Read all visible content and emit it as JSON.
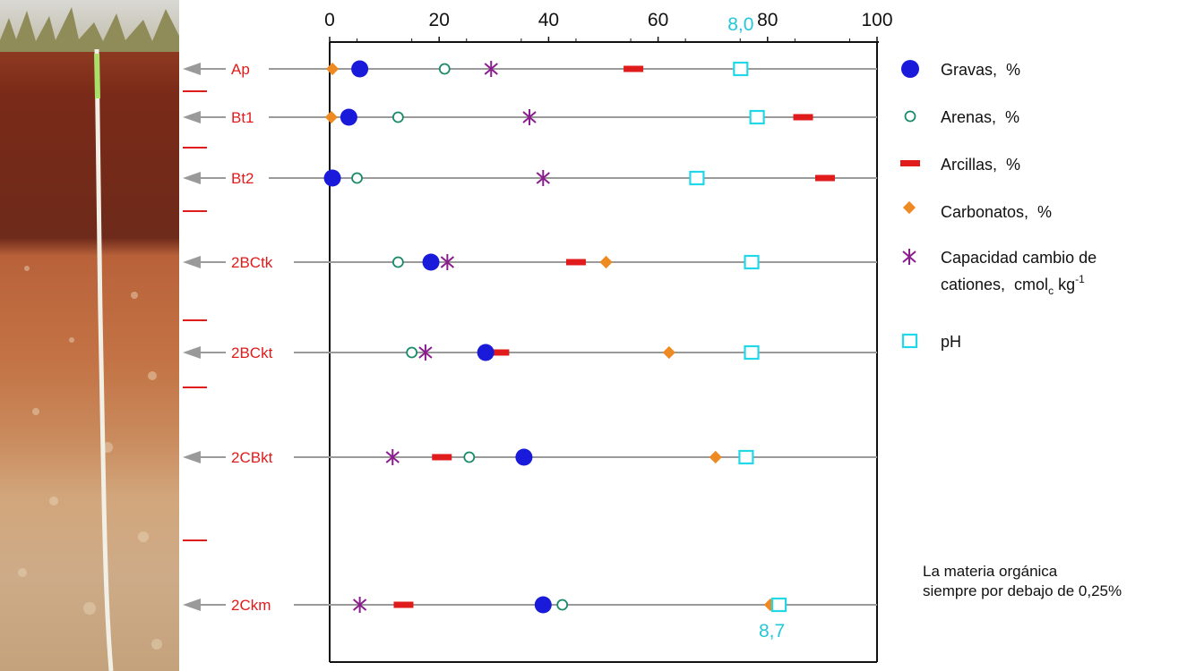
{
  "chart_data": {
    "type": "scatter",
    "x_ticks": [
      "0",
      "20",
      "40",
      "60",
      "80",
      "100"
    ],
    "xlim": [
      0,
      100
    ],
    "horizons": [
      "Ap",
      "Bt1",
      "Bt2",
      "2BCtk",
      "2BCkt",
      "2CBkt",
      "2Ckm"
    ],
    "series": [
      {
        "name": "Gravas,  %",
        "marker": "filled-circle",
        "color": "#1a1adb",
        "values": [
          5.5,
          3.5,
          0.5,
          18.5,
          28.5,
          35.5,
          39
        ]
      },
      {
        "name": "Arenas,  %",
        "marker": "open-circle",
        "color": "#1a8a6a",
        "values": [
          21,
          12.5,
          5,
          12.5,
          15,
          25.5,
          42.5
        ]
      },
      {
        "name": "Arcillas,  %",
        "marker": "dash",
        "color": "#e01b1b",
        "values": [
          55.5,
          86.5,
          90.5,
          45,
          31,
          20.5,
          13.5
        ]
      },
      {
        "name": "Carbonatos,  %",
        "marker": "diamond",
        "color": "#ee8a22",
        "values": [
          0.5,
          0.3,
          0.3,
          50.5,
          62,
          70.5,
          80.5
        ]
      },
      {
        "name": "Capacidad cambio de cationes, cmol_c kg-1",
        "marker": "asterisk",
        "color": "#8a1c8e",
        "values": [
          29.5,
          36.5,
          39,
          21.5,
          17.5,
          11.5,
          5.5
        ]
      },
      {
        "name": "pH",
        "marker": "open-square",
        "color": "#22d8e8",
        "values": [
          8.0,
          8.3,
          7.2,
          8.2,
          8.2,
          8.1,
          8.7
        ]
      }
    ],
    "ph_annotations": [
      "8,0",
      "8,7"
    ]
  },
  "legend": {
    "gravas": "Gravas,  %",
    "arenas": "Arenas,  %",
    "arcillas": "Arcillas,  %",
    "carbonatos": "Carbonatos,  %",
    "cic_line1": "Capacidad cambio de",
    "cic_line2_a": "cationes,  cmol",
    "cic_line2_sub": "c",
    "cic_line2_b": " kg",
    "cic_line2_sup": "-1",
    "ph": "pH"
  },
  "note": {
    "line1": "La materia orgánica",
    "line2": "siempre por debajo de 0,25%"
  },
  "colors": {
    "horizon_label": "#e01b1b",
    "arrow": "#9a9a9a",
    "ph_annotation": "#22c8d8"
  }
}
